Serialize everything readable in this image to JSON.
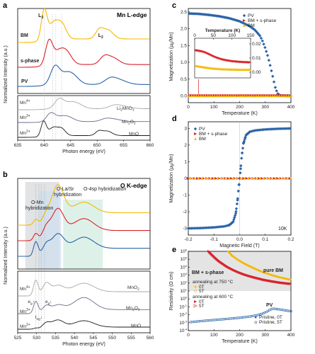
{
  "colors": {
    "BM": "#f5b800",
    "sphase": "#d8232a",
    "PV": "#2a64a8",
    "ref_li": "#a9a9a0",
    "ref_mn3": "#6a6a8a",
    "ref_mno": "#1a1a1a"
  },
  "panels": {
    "a": "a",
    "b": "b",
    "c": "c",
    "d": "d",
    "e": "e"
  },
  "panel_a": {
    "title": "Mn L-edge",
    "L3": "L",
    "L3_sub": "3",
    "L2": "L",
    "L2_sub": "2",
    "labels": {
      "BM": "BM",
      "sphase": "s-phase",
      "PV": "PV"
    },
    "refs": {
      "mn4": "Mn",
      "mn4_sup": "4+",
      "mn3": "Mn",
      "mn3_sup": "3+",
      "mn2": "Mn",
      "mn2_sup": "2+",
      "li2mno3": "Li",
      "li2mno3_b": "2",
      "li2mno3_c": "MnO",
      "li2mno3_d": "3",
      "mn2o3": "Mn",
      "mn2o3_b": "2",
      "mn2o3_c": "O",
      "mn2o3_d": "3",
      "mno": "MnO"
    },
    "ylabel": "Normalized Intensity (a.u.)",
    "xlabel": "Photon energy (eV)",
    "xticks": [
      "635",
      "640",
      "645",
      "650",
      "655",
      "660"
    ]
  },
  "panel_b": {
    "title": "O K-edge",
    "hyb1": "O-Mn",
    "hyb1b": "hybridization",
    "hyb2": "O-La/Sr",
    "hyb2b": "hybridization",
    "hyb3": "O-4sp hybridization",
    "refs": {
      "mn4": "Mn",
      "mn4_sup": "4+",
      "mn3": "Mn",
      "mn3_sup": "3+",
      "mn2": "Mn",
      "mn2_sup": "2+",
      "mno2": "MnO",
      "mno2_b": "2",
      "mn2o3": "Mn",
      "mn2o3_b": "2",
      "mn2o3_c": "O",
      "mn2o3_d": "3",
      "mno": "MnO"
    },
    "eg1": "e",
    "eg1_sub": "g",
    "eg1_arrow": "↑",
    "t2g": "t",
    "t2g_sub": "2g",
    "t2g_arrow": "↓",
    "eg2": "e",
    "eg2_sub": "g",
    "eg2_arrow": "↓",
    "ylabel": "Normalized Intensity (a.u.)",
    "xlabel": "Photon energy (eV)",
    "xticks": [
      "525",
      "530",
      "535",
      "540",
      "545",
      "550",
      "555",
      "560"
    ]
  },
  "chart_data": [
    {
      "panel": "c",
      "type": "scatter",
      "xlabel": "Temperature (K)",
      "ylabel": "Magnetization (μ",
      "ylabel_b": "B",
      "ylabel_c": "/Mn)",
      "xlim": [
        0,
        400
      ],
      "ylim": [
        -0.2,
        2.6
      ],
      "xticks": [
        "0",
        "100",
        "200",
        "300",
        "400"
      ],
      "yticks": [
        "0.0",
        "0.5",
        "1.0",
        "1.5",
        "2.0",
        "2.5"
      ],
      "legend": [
        "PV",
        "BM + s-phase",
        "BM"
      ],
      "series": [
        {
          "name": "PV",
          "x": [
            5,
            40,
            80,
            120,
            160,
            200,
            240,
            260,
            280,
            290,
            300,
            310,
            320,
            330,
            340,
            350,
            360,
            380,
            400
          ],
          "y": [
            2.45,
            2.44,
            2.41,
            2.37,
            2.31,
            2.22,
            2.07,
            1.96,
            1.78,
            1.62,
            1.42,
            1.18,
            0.88,
            0.55,
            0.22,
            0.05,
            0.01,
            0.0,
            0.0
          ]
        },
        {
          "name": "BM + s-phase",
          "x": [
            5,
            50,
            100,
            150,
            200,
            250,
            300,
            350,
            400
          ],
          "y": [
            0.02,
            0.01,
            0.01,
            0.0,
            0.0,
            0.0,
            0.0,
            0.0,
            0.0
          ]
        },
        {
          "name": "BM",
          "x": [
            5,
            50,
            100,
            150,
            200,
            250,
            300,
            350,
            400
          ],
          "y": [
            0.0,
            0.0,
            0.0,
            0.0,
            0.0,
            0.0,
            0.0,
            0.0,
            0.0
          ]
        }
      ],
      "inset": {
        "xlabel": "Temperature (K)",
        "xticks": [
          "0",
          "50",
          "100",
          "150"
        ],
        "yticks": [
          "0.00",
          "0.01",
          "0.02"
        ],
        "xlim": [
          0,
          150
        ],
        "ylim": [
          -0.004,
          0.024
        ],
        "series": [
          {
            "name": "BM + s-phase",
            "x": [
              5,
              10,
              20,
              30,
              40,
              50,
              60,
              70,
              80,
              90,
              100,
              110,
              120,
              130,
              140,
              150
            ],
            "y": [
              0.0155,
              0.0153,
              0.0148,
              0.014,
              0.0128,
              0.0115,
              0.0104,
              0.0095,
              0.0088,
              0.0083,
              0.0079,
              0.0076,
              0.0074,
              0.0072,
              0.0071,
              0.007
            ]
          },
          {
            "name": "BM",
            "x": [
              5,
              10,
              20,
              30,
              40,
              50,
              60,
              70,
              80,
              90,
              100,
              110,
              120,
              130,
              140,
              150
            ],
            "y": [
              0.0045,
              0.0042,
              0.0038,
              0.0034,
              0.003,
              0.0027,
              0.0025,
              0.0023,
              0.0022,
              0.0021,
              0.002,
              0.002,
              0.0019,
              0.0019,
              0.0019,
              0.0019
            ]
          }
        ]
      }
    },
    {
      "panel": "d",
      "type": "scatter",
      "xlabel": "Magnetic Field (T)",
      "ylabel": "Magnetization (μ",
      "ylabel_b": "B",
      "ylabel_c": "/Mn)",
      "xlim": [
        -0.2,
        0.2
      ],
      "ylim": [
        -3.4,
        3.4
      ],
      "annotation": "10K",
      "xticks": [
        "-0.2",
        "-0.1",
        "0.0",
        "0.1",
        "0.2"
      ],
      "yticks": [
        "-3",
        "-2",
        "-1",
        "0",
        "1",
        "2",
        "3"
      ],
      "legend": [
        "PV",
        "BM + s-phase",
        "BM"
      ],
      "series": [
        {
          "name": "PV",
          "x": [
            -0.2,
            -0.15,
            -0.1,
            -0.06,
            -0.04,
            -0.025,
            -0.015,
            -0.008,
            -0.003,
            0.0,
            0.003,
            0.008,
            0.015,
            0.025,
            0.04,
            0.06,
            0.1,
            0.15,
            0.2
          ],
          "y": [
            -3.0,
            -2.98,
            -2.94,
            -2.88,
            -2.8,
            -2.6,
            -2.1,
            -1.3,
            -0.4,
            0.0,
            0.4,
            1.3,
            2.1,
            2.6,
            2.8,
            2.88,
            2.94,
            2.98,
            3.0
          ]
        },
        {
          "name": "BM + s-phase",
          "x": [
            -0.2,
            -0.15,
            -0.1,
            -0.05,
            0.0,
            0.05,
            0.1,
            0.15,
            0.2
          ],
          "y": [
            -0.02,
            -0.015,
            -0.01,
            -0.005,
            0.0,
            0.005,
            0.01,
            0.015,
            0.02
          ]
        },
        {
          "name": "BM",
          "x": [
            -0.2,
            -0.15,
            -0.1,
            -0.05,
            0.0,
            0.05,
            0.1,
            0.15,
            0.2
          ],
          "y": [
            -0.01,
            -0.007,
            -0.005,
            -0.002,
            0.0,
            0.002,
            0.005,
            0.007,
            0.01
          ]
        }
      ]
    },
    {
      "panel": "e",
      "type": "line",
      "xlabel": "Temperature (K)",
      "ylabel": "Resistivity (Ω cm)",
      "yscale": "log",
      "xlim": [
        0,
        400
      ],
      "ylim": [
        0.0001,
        1000000
      ],
      "xticks": [
        "0",
        "100",
        "200",
        "300",
        "400"
      ],
      "yticks": [
        "10",
        "10",
        "10",
        "10",
        "10",
        "10",
        "10",
        "10",
        "10",
        "10",
        "10"
      ],
      "ytick_exp": [
        "-4",
        "-3",
        "-2",
        "-1",
        "0",
        "1",
        "2",
        "3",
        "4",
        "5",
        "6"
      ],
      "labels": {
        "pure_bm": "pure BM",
        "bm_s": "BM + s-phase",
        "pv": "PV"
      },
      "legend_groups": [
        {
          "title": "annealing at 750 °C",
          "items": [
            "0T",
            "5T"
          ]
        },
        {
          "title": "annealing at 600 °C",
          "items": [
            "0T",
            "5T"
          ]
        },
        {
          "title": "",
          "items": [
            "Pristine, 0T",
            "Pristine, 5T"
          ]
        }
      ],
      "series": [
        {
          "name": "annealing at 750 °C, 0T",
          "x": [
            155,
            170,
            190,
            210,
            230,
            250,
            270,
            290,
            310,
            330,
            350,
            370,
            390,
            400
          ],
          "y": [
            1000000,
            300000,
            100000,
            40000,
            18000,
            9000,
            4500,
            2500,
            1500,
            900,
            600,
            420,
            300,
            260
          ]
        },
        {
          "name": "annealing at 600 °C, 0T",
          "x": [
            80,
            90,
            100,
            110,
            120,
            130,
            140,
            150,
            160,
            180,
            200,
            220,
            240,
            260,
            280,
            300,
            330,
            360,
            400
          ],
          "y": [
            1000000,
            450000,
            220000,
            110000,
            60000,
            35000,
            21000,
            13000,
            8500,
            4000,
            2100,
            1200,
            750,
            500,
            340,
            240,
            160,
            110,
            80
          ]
        },
        {
          "name": "Pristine, 0T",
          "x": [
            10,
            50,
            100,
            150,
            200,
            240,
            270,
            290,
            300,
            310,
            320,
            330,
            340,
            360,
            380,
            400
          ],
          "y": [
            0.0012,
            0.0016,
            0.0022,
            0.003,
            0.0042,
            0.006,
            0.009,
            0.014,
            0.02,
            0.03,
            0.045,
            0.06,
            0.055,
            0.045,
            0.035,
            0.028
          ]
        }
      ]
    }
  ]
}
